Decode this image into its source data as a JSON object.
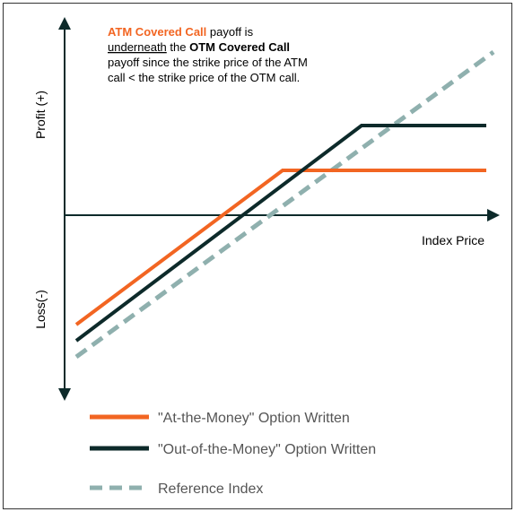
{
  "annotation": {
    "atm": "ATM Covered Call",
    "line1_rest": " payoff is",
    "underneath": "underneath",
    "the": " the ",
    "otm": "OTM Covered Call",
    "line3": "payoff since the strike price of the ATM",
    "line4": "call < the strike price of the OTM call."
  },
  "axes": {
    "profit": "Profit (+)",
    "loss": "Loss(-)",
    "x": "Index Price"
  },
  "legend": [
    "\"At-the-Money\" Option Written",
    "\"Out-of-the-Money\" Option Written",
    "Reference Index"
  ]
}
